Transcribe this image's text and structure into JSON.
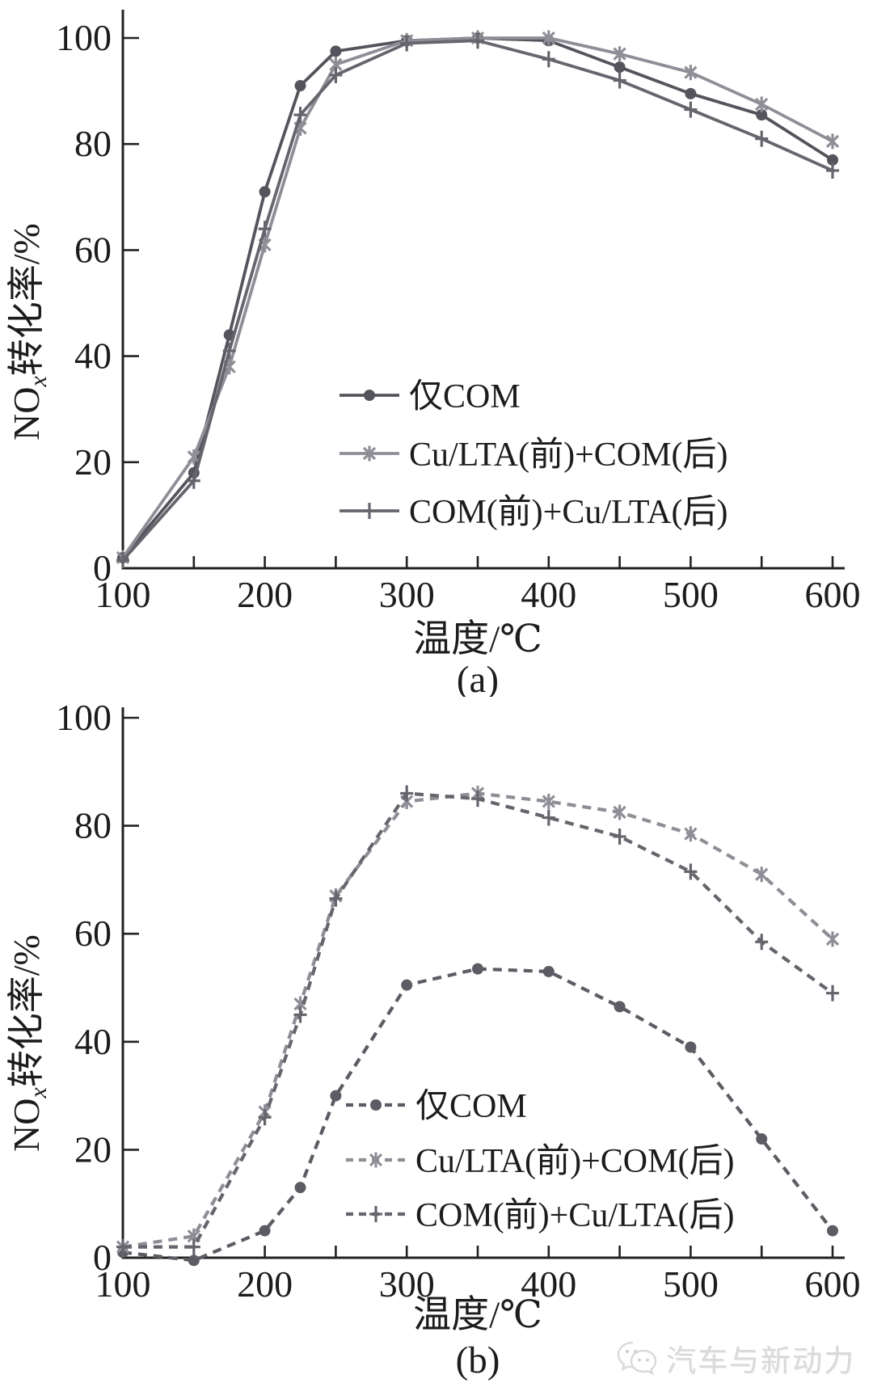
{
  "watermark": {
    "text": "汽车与新动力"
  },
  "chart_data": [
    {
      "type": "line",
      "panel_label": "(a)",
      "line_style": "solid",
      "xlabel": "温度/℃",
      "ylabel": {
        "prefix": "NO",
        "sub": "x",
        "suffix": "转化率/%"
      },
      "xlim": [
        100,
        600
      ],
      "ylim": [
        0,
        100
      ],
      "grid": false,
      "legend_position": "inside-center-right",
      "xtick_labels": [
        100,
        200,
        300,
        400,
        500,
        600
      ],
      "xticks_minor": [
        150,
        200,
        250,
        300,
        350,
        400,
        450,
        500,
        550,
        600
      ],
      "yticks": [
        0,
        20,
        40,
        60,
        80,
        100
      ],
      "x": [
        100,
        150,
        175,
        200,
        225,
        250,
        300,
        350,
        400,
        450,
        500,
        550,
        600
      ],
      "series": [
        {
          "name": "仅COM",
          "marker": "circle",
          "color": "#55545c",
          "values": [
            2,
            18,
            44,
            71,
            91,
            97.5,
            99.5,
            100,
            99.5,
            94.5,
            89.5,
            85.5,
            77
          ]
        },
        {
          "name": "Cu/LTA(前)+COM(后)",
          "marker": "star",
          "color": "#8f8e97",
          "values": [
            2,
            21,
            38,
            61,
            83,
            95,
            99.5,
            100,
            100,
            97,
            93.5,
            87.5,
            80.5
          ]
        },
        {
          "name": "COM(前)+Cu/LTA(后)",
          "marker": "plus",
          "color": "#66656d",
          "values": [
            1.5,
            16.5,
            41,
            64,
            85.5,
            93,
            99,
            99.5,
            96,
            92,
            86.5,
            81,
            75
          ]
        }
      ]
    },
    {
      "type": "line",
      "panel_label": "(b)",
      "line_style": "dashed",
      "xlabel": "温度/℃",
      "ylabel": {
        "prefix": "NO",
        "sub": "x",
        "suffix": "转化率/%"
      },
      "xlim": [
        100,
        600
      ],
      "ylim": [
        0,
        100
      ],
      "grid": false,
      "legend_position": "inside-center-right",
      "xtick_labels": [
        100,
        200,
        300,
        400,
        500,
        600
      ],
      "xticks_minor": [
        150,
        200,
        250,
        300,
        350,
        400,
        450,
        500,
        550,
        600
      ],
      "yticks": [
        0,
        20,
        40,
        60,
        80,
        100
      ],
      "x": [
        100,
        150,
        200,
        225,
        250,
        300,
        350,
        400,
        450,
        500,
        550,
        600
      ],
      "series": [
        {
          "name": "仅COM",
          "marker": "circle",
          "color": "#5d5c64",
          "values": [
            1,
            -0.5,
            5,
            13,
            30,
            50.5,
            53.5,
            53,
            46.5,
            39,
            22,
            5
          ]
        },
        {
          "name": "Cu/LTA(前)+COM(后)",
          "marker": "star",
          "color": "#8f8e97",
          "values": [
            2,
            4,
            27,
            47,
            67,
            84.5,
            86,
            84.5,
            82.5,
            78.5,
            71,
            59
          ]
        },
        {
          "name": "COM(前)+Cu/LTA(后)",
          "marker": "plus",
          "color": "#66656d",
          "values": [
            2,
            2,
            26,
            45,
            66.5,
            86,
            85,
            81.5,
            78,
            71.5,
            58.5,
            49
          ]
        }
      ]
    }
  ]
}
